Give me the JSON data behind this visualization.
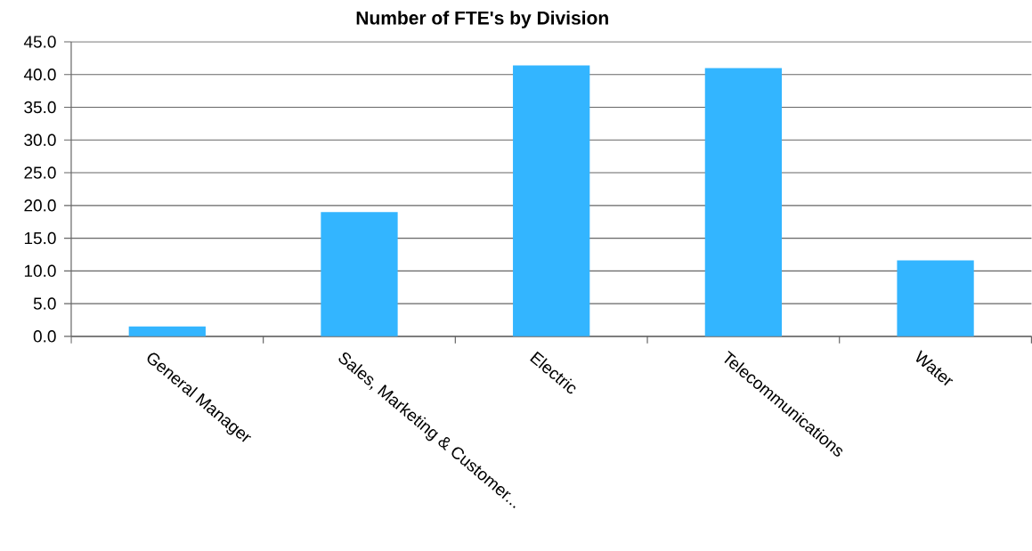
{
  "chart_data": {
    "type": "bar",
    "title": "Number of FTE's by Division",
    "categories": [
      "General Manager",
      "Sales, Marketing & Customer...",
      "Electric",
      "Telecommunications",
      "Water"
    ],
    "values": [
      1.5,
      19.0,
      41.4,
      41.0,
      11.6
    ],
    "color": "#33b5ff",
    "ylim": [
      0,
      45
    ],
    "yticks": [
      {
        "value": 0,
        "label": "0.0"
      },
      {
        "value": 5,
        "label": "5.0"
      },
      {
        "value": 10,
        "label": "10.0"
      },
      {
        "value": 15,
        "label": "15.0"
      },
      {
        "value": 20,
        "label": "20.0"
      },
      {
        "value": 25,
        "label": "25.0"
      },
      {
        "value": 30,
        "label": "30.0"
      },
      {
        "value": 35,
        "label": "35.0"
      },
      {
        "value": 40,
        "label": "40.0"
      },
      {
        "value": 45,
        "label": "45.0"
      }
    ],
    "grid": "y"
  }
}
